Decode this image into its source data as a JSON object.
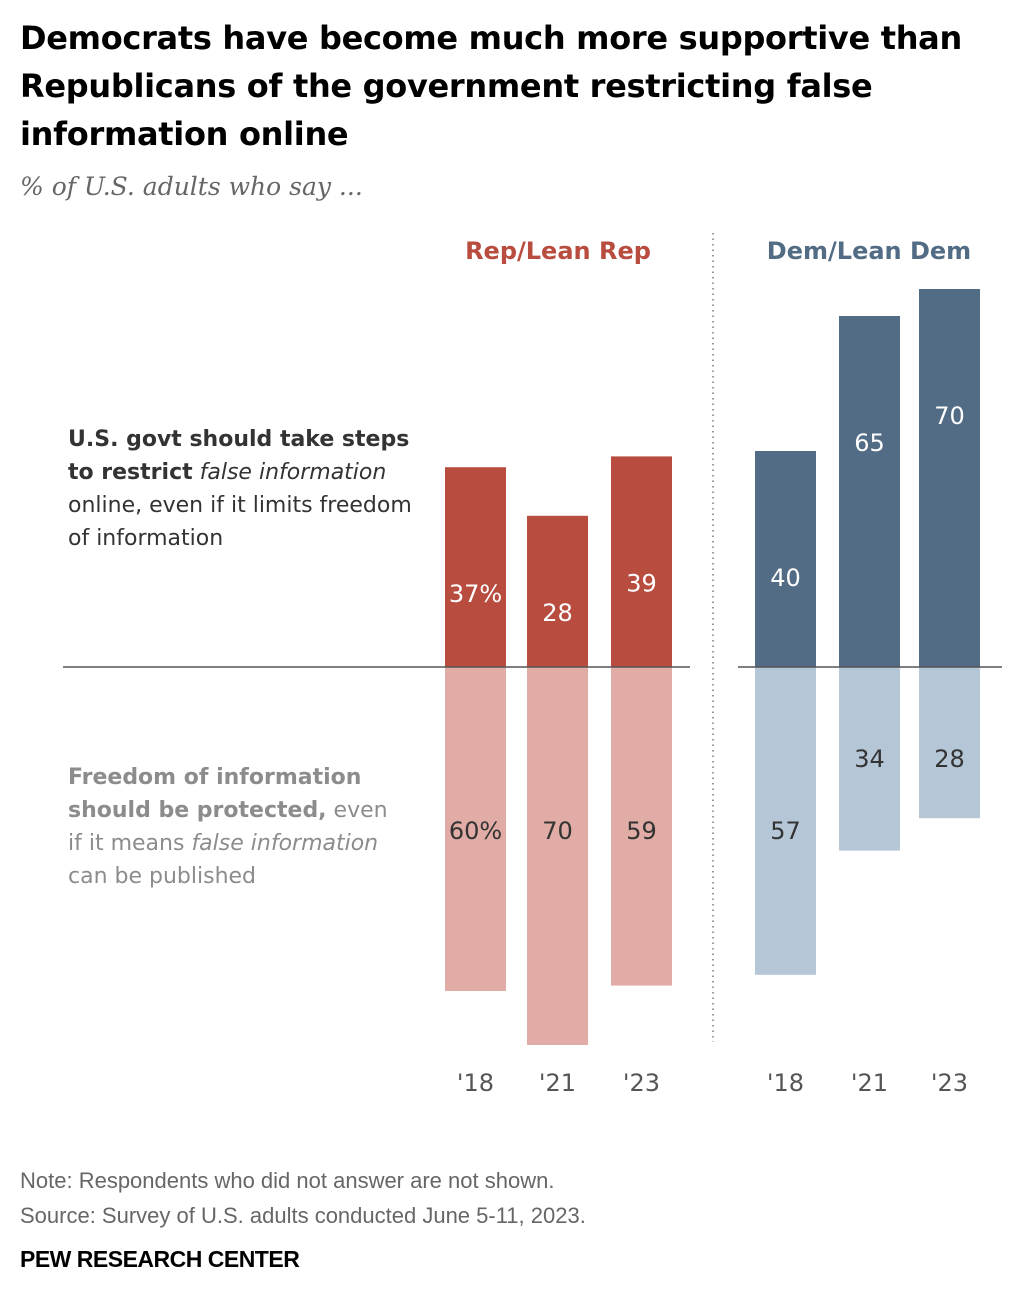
{
  "title": "Democrats have become much more supportive than Republicans of the government restricting false information online",
  "subtitle": "% of U.S. adults who say ...",
  "top_label": {
    "bold": "U.S. govt should take steps to restrict",
    "italic": "false information",
    "rest": "online, even if it limits freedom of information"
  },
  "bottom_label": {
    "bold": "Freedom of information should be protected,",
    "pre": "even if it means",
    "italic": "false information",
    "rest": "can be published"
  },
  "note": "Note: Respondents who did not answer are not shown.",
  "source": "Source: Survey of U.S. adults conducted June 5-11, 2023.",
  "brand": "PEW RESEARCH CENTER",
  "colors": {
    "rep_dark": "#b84c3f",
    "rep_light": "#e0aca5",
    "dem_dark": "#536c85",
    "dem_light": "#b5c6d7",
    "rep_text": "#b84c3f",
    "dem_text": "#536c85"
  },
  "chart_data": {
    "type": "bar",
    "categories": [
      "'18",
      "'21",
      "'23"
    ],
    "groups": [
      {
        "name": "Rep/Lean Rep",
        "restrict": [
          37,
          28,
          39
        ],
        "restrict_labels": [
          "37%",
          "28",
          "39"
        ],
        "protect": [
          60,
          70,
          59
        ],
        "protect_labels": [
          "60%",
          "70",
          "59"
        ]
      },
      {
        "name": "Dem/Lean Dem",
        "restrict": [
          40,
          65,
          70
        ],
        "restrict_labels": [
          "40",
          "65",
          "70"
        ],
        "protect": [
          57,
          34,
          28
        ],
        "protect_labels": [
          "57",
          "34",
          "28"
        ]
      }
    ],
    "series": [
      {
        "name": "U.S. govt should take steps to restrict false information online, even if it limits freedom of information"
      },
      {
        "name": "Freedom of information should be protected, even if it means false information can be published"
      }
    ]
  }
}
